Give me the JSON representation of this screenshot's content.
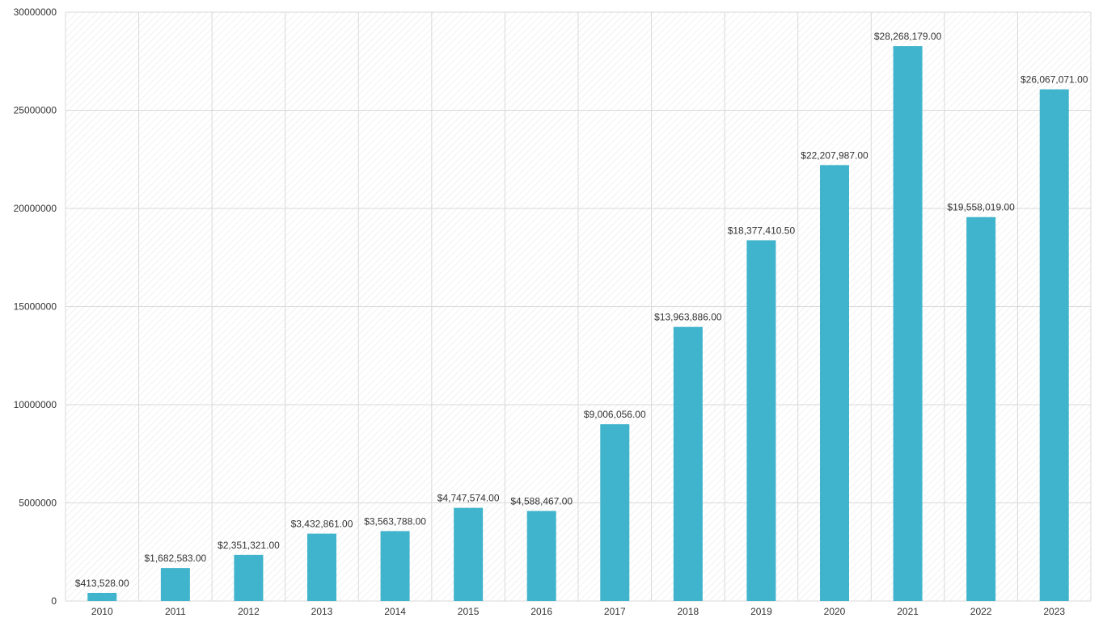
{
  "chart_data": {
    "type": "bar",
    "title": "",
    "xlabel": "",
    "ylabel": "",
    "categories": [
      "2010",
      "2011",
      "2012",
      "2013",
      "2014",
      "2015",
      "2016",
      "2017",
      "2018",
      "2019",
      "2020",
      "2021",
      "2022",
      "2023"
    ],
    "values": [
      413528,
      1682583,
      2351321,
      3432861,
      3563788,
      4747574,
      4588467,
      9006056,
      13963886,
      18377410.5,
      22207987,
      28268179,
      19558019,
      26067071
    ],
    "data_labels": [
      "$413,528.00",
      "$1,682,583.00",
      "$2,351,321.00",
      "$3,432,861.00",
      "$3,563,788.00",
      "$4,747,574.00",
      "$4,588,467.00",
      "$9,006,056.00",
      "$13,963,886.00",
      "$18,377,410.50",
      "$22,207,987.00",
      "$28,268,179.00",
      "$19,558,019.00",
      "$26,067,071.00"
    ],
    "ylim": [
      0,
      30000000
    ],
    "y_ticks": [
      0,
      5000000,
      10000000,
      15000000,
      20000000,
      25000000,
      30000000
    ],
    "y_tick_labels": [
      "0",
      "5000000",
      "10000000",
      "15000000",
      "20000000",
      "25000000",
      "30000000"
    ],
    "grid": true,
    "legend": "none",
    "bar_color": "#40b4cc",
    "grid_color": "#d9d9d9"
  }
}
